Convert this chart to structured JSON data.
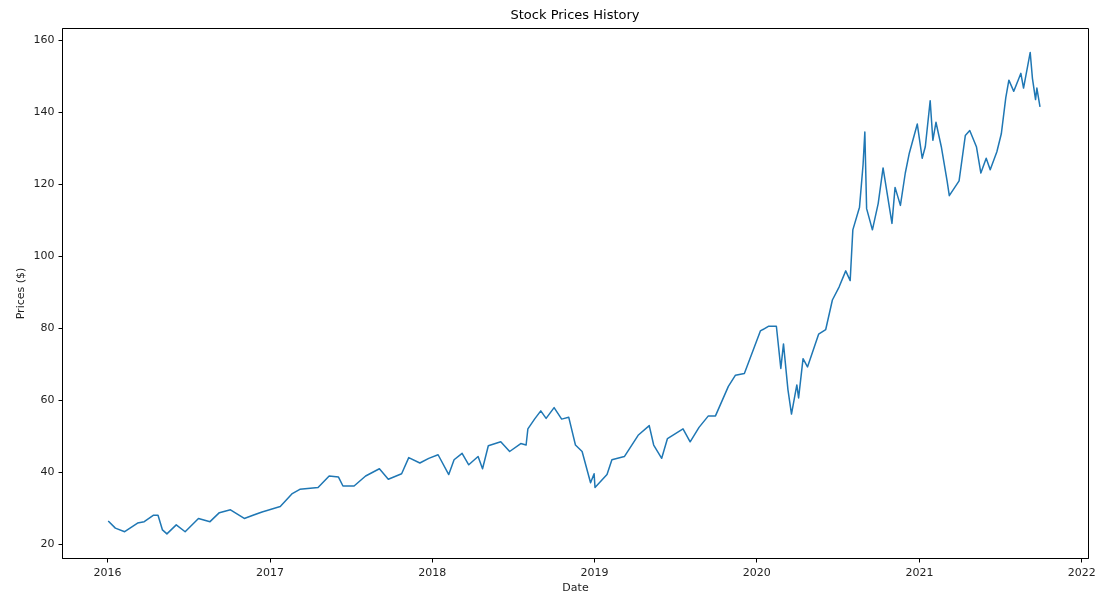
{
  "chart_data": {
    "type": "line",
    "title": "Stock Prices History",
    "xlabel": "Date",
    "ylabel": "Prices ($)",
    "xlim": [
      "2015-09-22",
      "2022-01-16"
    ],
    "ylim": [
      16,
      163.3
    ],
    "xticks": [
      "2016",
      "2017",
      "2018",
      "2019",
      "2020",
      "2021",
      "2022"
    ],
    "yticks": [
      20,
      40,
      60,
      80,
      100,
      120,
      140,
      160
    ],
    "grid": false,
    "marker": "none",
    "line_style": "solid",
    "x": [
      "2016-01-04",
      "2016-01-20",
      "2016-02-10",
      "2016-03-10",
      "2016-03-25",
      "2016-04-15",
      "2016-04-25",
      "2016-05-05",
      "2016-05-15",
      "2016-06-05",
      "2016-06-25",
      "2016-07-25",
      "2016-08-20",
      "2016-09-10",
      "2016-10-05",
      "2016-11-05",
      "2016-12-15",
      "2017-01-25",
      "2017-02-20",
      "2017-03-10",
      "2017-04-20",
      "2017-05-15",
      "2017-06-05",
      "2017-06-15",
      "2017-07-10",
      "2017-08-05",
      "2017-09-05",
      "2017-09-25",
      "2017-10-25",
      "2017-11-10",
      "2017-12-05",
      "2017-12-25",
      "2018-01-15",
      "2018-02-08",
      "2018-02-20",
      "2018-03-10",
      "2018-03-25",
      "2018-04-15",
      "2018-04-25",
      "2018-05-08",
      "2018-06-05",
      "2018-06-25",
      "2018-07-20",
      "2018-08-01",
      "2018-08-05",
      "2018-08-20",
      "2018-09-03",
      "2018-09-15",
      "2018-10-03",
      "2018-10-20",
      "2018-11-05",
      "2018-11-20",
      "2018-12-05",
      "2018-12-24",
      "2019-01-01",
      "2019-01-03",
      "2019-01-30",
      "2019-02-10",
      "2019-03-10",
      "2019-04-10",
      "2019-05-05",
      "2019-05-15",
      "2019-06-02",
      "2019-06-15",
      "2019-07-20",
      "2019-08-05",
      "2019-08-25",
      "2019-09-15",
      "2019-10-01",
      "2019-10-30",
      "2019-11-15",
      "2019-12-05",
      "2020-01-10",
      "2020-01-28",
      "2020-02-15",
      "2020-02-25",
      "2020-03-02",
      "2020-03-12",
      "2020-03-20",
      "2020-04-01",
      "2020-04-05",
      "2020-04-15",
      "2020-04-25",
      "2020-05-20",
      "2020-06-05",
      "2020-06-20",
      "2020-07-05",
      "2020-07-20",
      "2020-07-30",
      "2020-08-05",
      "2020-08-20",
      "2020-08-28",
      "2020-09-01",
      "2020-09-05",
      "2020-09-18",
      "2020-10-01",
      "2020-10-12",
      "2020-11-01",
      "2020-11-08",
      "2020-11-20",
      "2020-12-01",
      "2020-12-10",
      "2020-12-28",
      "2021-01-08",
      "2021-01-15",
      "2021-01-26",
      "2021-02-01",
      "2021-02-08",
      "2021-02-20",
      "2021-03-05",
      "2021-03-10",
      "2021-04-01",
      "2021-04-15",
      "2021-04-25",
      "2021-05-10",
      "2021-05-20",
      "2021-06-01",
      "2021-06-10",
      "2021-06-25",
      "2021-07-05",
      "2021-07-15",
      "2021-07-22",
      "2021-08-02",
      "2021-08-18",
      "2021-08-24",
      "2021-09-08",
      "2021-09-13",
      "2021-09-20",
      "2021-09-23",
      "2021-09-30"
    ],
    "series": [
      {
        "color": "#1f77b4",
        "values": [
          26.3,
          24.3,
          23.3,
          25.7,
          26.1,
          27.9,
          27.9,
          23.8,
          22.7,
          25.2,
          23.3,
          27.0,
          26.1,
          28.6,
          29.4,
          27.0,
          28.8,
          30.3,
          33.8,
          35.1,
          35.6,
          38.8,
          38.5,
          36.0,
          36.0,
          38.8,
          40.8,
          37.9,
          39.4,
          43.9,
          42.4,
          43.7,
          44.7,
          39.2,
          43.3,
          45.1,
          41.9,
          44.2,
          40.8,
          47.2,
          48.3,
          45.6,
          47.8,
          47.4,
          51.9,
          54.6,
          56.9,
          54.8,
          57.8,
          54.6,
          55.1,
          47.4,
          45.6,
          36.9,
          39.4,
          35.6,
          39.2,
          43.3,
          44.2,
          50.1,
          52.8,
          47.4,
          43.7,
          49.2,
          51.9,
          48.3,
          52.3,
          55.5,
          55.5,
          63.7,
          66.8,
          67.3,
          79.1,
          80.4,
          80.4,
          68.7,
          75.5,
          62.8,
          56.0,
          64.1,
          60.5,
          71.4,
          69.1,
          78.2,
          79.5,
          87.7,
          91.3,
          95.8,
          93.1,
          107.2,
          113.5,
          125.3,
          134.4,
          113.1,
          107.2,
          114.5,
          124.4,
          109.0,
          119.0,
          114.0,
          123.0,
          128.5,
          136.6,
          127.1,
          130.3,
          143.1,
          132.1,
          137.1,
          130.3,
          120.8,
          116.7,
          120.8,
          133.4,
          134.8,
          130.3,
          123.0,
          127.1,
          123.9,
          128.9,
          133.9,
          143.9,
          148.8,
          145.7,
          150.7,
          146.6,
          156.5,
          149.3,
          143.4,
          146.6,
          141.4
        ]
      }
    ]
  }
}
